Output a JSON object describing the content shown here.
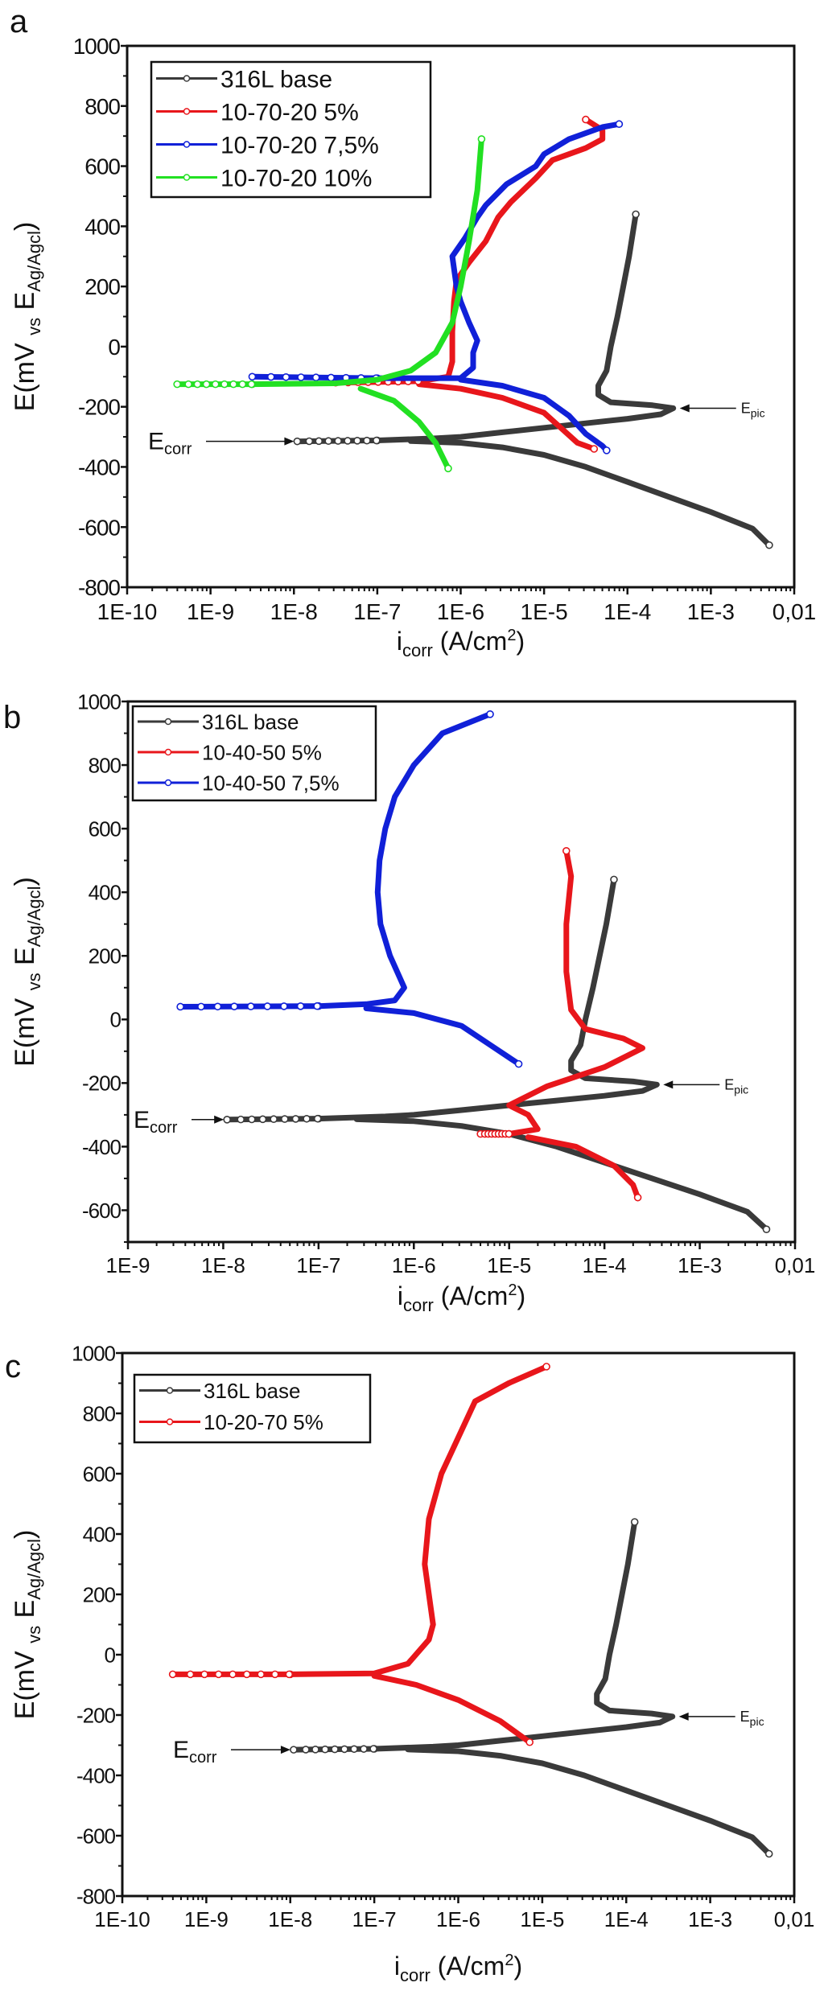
{
  "chart_data": [
    {
      "type": "line",
      "panel_label": "a",
      "xscale": "log",
      "xlabel": {
        "main": "i",
        "sub": "corr",
        "unit": " (A/cm",
        "sup": "2",
        "close": ")"
      },
      "ylabel": {
        "main": "E(mV ",
        "sub1": "vs",
        "mid": " E",
        "sub2": "Ag/Agcl",
        "close": ")"
      },
      "xlim_log10": [
        -10,
        -2
      ],
      "ylim": [
        -800,
        1000
      ],
      "xticks": [
        "1E-10",
        "1E-9",
        "1E-8",
        "1E-7",
        "1E-6",
        "1E-5",
        "1E-4",
        "1E-3",
        "0,01"
      ],
      "yticks": [
        1000,
        800,
        600,
        400,
        200,
        0,
        -200,
        -400,
        -600,
        -800
      ],
      "legend_position": "top-left",
      "annotations": {
        "ecorr": {
          "main": "E",
          "sub": "corr",
          "E": -315,
          "log_i": -7.96
        },
        "epic": {
          "main": "E",
          "sub": "pic",
          "E": -205,
          "log_i": -3.45
        }
      },
      "series": [
        {
          "name": "316L base",
          "color": "#3a3a3a",
          "anodic": [
            [
              -7.96,
              -315
            ],
            [
              -7,
              -312
            ],
            [
              -6.3,
              -305
            ],
            [
              -6,
              -300
            ],
            [
              -5.5,
              -285
            ],
            [
              -5,
              -270
            ],
            [
              -4.5,
              -255
            ],
            [
              -4,
              -240
            ],
            [
              -3.6,
              -225
            ],
            [
              -3.45,
              -205
            ],
            [
              -3.7,
              -195
            ],
            [
              -4.2,
              -185
            ],
            [
              -4.35,
              -160
            ],
            [
              -4.35,
              -130
            ],
            [
              -4.25,
              -80
            ],
            [
              -4.2,
              0
            ],
            [
              -4.12,
              100
            ],
            [
              -4.05,
              200
            ],
            [
              -3.98,
              300
            ],
            [
              -3.9,
              440
            ]
          ],
          "cathodic": [
            [
              -6.6,
              -314
            ],
            [
              -6,
              -320
            ],
            [
              -5.5,
              -335
            ],
            [
              -5,
              -360
            ],
            [
              -4.5,
              -400
            ],
            [
              -4,
              -450
            ],
            [
              -3.5,
              -500
            ],
            [
              -3,
              -550
            ],
            [
              -2.5,
              -605
            ],
            [
              -2.3,
              -660
            ]
          ]
        },
        {
          "name": "10-70-20 5%",
          "color": "#e8161b",
          "anodic": [
            [
              -7.5,
              -120
            ],
            [
              -6.5,
              -115
            ],
            [
              -6.15,
              -100
            ],
            [
              -6.1,
              -50
            ],
            [
              -6.1,
              50
            ],
            [
              -6.08,
              150
            ],
            [
              -6.05,
              220
            ],
            [
              -5.9,
              280
            ],
            [
              -5.7,
              350
            ],
            [
              -5.55,
              430
            ],
            [
              -5.4,
              480
            ],
            [
              -5.1,
              560
            ],
            [
              -4.9,
              620
            ],
            [
              -4.5,
              660
            ],
            [
              -4.3,
              690
            ],
            [
              -4.3,
              720
            ],
            [
              -4.5,
              755
            ]
          ],
          "cathodic": [
            [
              -6.5,
              -125
            ],
            [
              -6,
              -140
            ],
            [
              -5.5,
              -170
            ],
            [
              -5,
              -220
            ],
            [
              -4.8,
              -270
            ],
            [
              -4.6,
              -320
            ],
            [
              -4.4,
              -340
            ]
          ]
        },
        {
          "name": "10-70-20 7,5%",
          "color": "#1020d8",
          "anodic": [
            [
              -8.5,
              -100
            ],
            [
              -7,
              -105
            ],
            [
              -6.5,
              -105
            ],
            [
              -6,
              -105
            ],
            [
              -5.85,
              -70
            ],
            [
              -5.85,
              -20
            ],
            [
              -5.8,
              20
            ],
            [
              -5.9,
              80
            ],
            [
              -6.0,
              150
            ],
            [
              -6.05,
              200
            ],
            [
              -6.1,
              300
            ],
            [
              -5.95,
              360
            ],
            [
              -5.8,
              430
            ],
            [
              -5.7,
              470
            ],
            [
              -5.45,
              540
            ],
            [
              -5.1,
              600
            ],
            [
              -5.0,
              640
            ],
            [
              -4.7,
              690
            ],
            [
              -4.3,
              730
            ],
            [
              -4.1,
              740
            ]
          ],
          "cathodic": [
            [
              -6,
              -110
            ],
            [
              -5.5,
              -130
            ],
            [
              -5,
              -170
            ],
            [
              -4.7,
              -230
            ],
            [
              -4.5,
              -290
            ],
            [
              -4.3,
              -330
            ],
            [
              -4.25,
              -345
            ]
          ]
        },
        {
          "name": "10-70-20 10%",
          "color": "#22e022",
          "anodic": [
            [
              -9.4,
              -125
            ],
            [
              -8.5,
              -125
            ],
            [
              -7.5,
              -122
            ],
            [
              -7,
              -110
            ],
            [
              -6.6,
              -80
            ],
            [
              -6.3,
              -20
            ],
            [
              -6.1,
              80
            ],
            [
              -6.0,
              200
            ],
            [
              -5.9,
              350
            ],
            [
              -5.8,
              520
            ],
            [
              -5.75,
              690
            ]
          ],
          "cathodic": [
            [
              -7.2,
              -140
            ],
            [
              -6.8,
              -180
            ],
            [
              -6.5,
              -250
            ],
            [
              -6.3,
              -320
            ],
            [
              -6.15,
              -405
            ]
          ]
        }
      ]
    },
    {
      "type": "line",
      "panel_label": "b",
      "xscale": "log",
      "xlabel": {
        "main": "i",
        "sub": "corr",
        "unit": " (A/cm",
        "sup": "2",
        "close": ")"
      },
      "ylabel": {
        "main": "E(mV ",
        "sub1": "vs",
        "mid": " E",
        "sub2": "Ag/Agcl",
        "close": ")"
      },
      "xlim_log10": [
        -9,
        -2
      ],
      "ylim": [
        -700,
        1000
      ],
      "xticks": [
        "1E-9",
        "1E-8",
        "1E-7",
        "1E-6",
        "1E-5",
        "1E-4",
        "1E-3",
        "0,01"
      ],
      "yticks": [
        1000,
        800,
        600,
        400,
        200,
        0,
        -200,
        -400,
        -600
      ],
      "legend_position": "top-left",
      "annotations": {
        "ecorr": {
          "main": "E",
          "sub": "corr",
          "E": -315,
          "log_i": -7.96
        },
        "epic": {
          "main": "E",
          "sub": "pic",
          "E": -205,
          "log_i": -3.45
        }
      },
      "series": [
        {
          "name": "316L base",
          "color": "#3a3a3a",
          "anodic": [
            [
              -7.96,
              -315
            ],
            [
              -7,
              -312
            ],
            [
              -6.3,
              -305
            ],
            [
              -6,
              -300
            ],
            [
              -5.5,
              -285
            ],
            [
              -5,
              -270
            ],
            [
              -4.5,
              -255
            ],
            [
              -4,
              -240
            ],
            [
              -3.6,
              -225
            ],
            [
              -3.45,
              -205
            ],
            [
              -3.7,
              -195
            ],
            [
              -4.2,
              -185
            ],
            [
              -4.35,
              -160
            ],
            [
              -4.35,
              -130
            ],
            [
              -4.25,
              -80
            ],
            [
              -4.2,
              0
            ],
            [
              -4.12,
              100
            ],
            [
              -4.05,
              200
            ],
            [
              -3.98,
              300
            ],
            [
              -3.9,
              440
            ]
          ],
          "cathodic": [
            [
              -6.6,
              -314
            ],
            [
              -6,
              -320
            ],
            [
              -5.5,
              -335
            ],
            [
              -5,
              -360
            ],
            [
              -4.5,
              -400
            ],
            [
              -4,
              -450
            ],
            [
              -3.5,
              -500
            ],
            [
              -3,
              -550
            ],
            [
              -2.5,
              -605
            ],
            [
              -2.3,
              -660
            ]
          ]
        },
        {
          "name": "10-40-50 5%",
          "color": "#e8161b",
          "anodic": [
            [
              -5.3,
              -360
            ],
            [
              -5,
              -360
            ],
            [
              -4.7,
              -345
            ],
            [
              -4.8,
              -300
            ],
            [
              -5,
              -270
            ],
            [
              -4.6,
              -210
            ],
            [
              -4,
              -150
            ],
            [
              -3.6,
              -90
            ],
            [
              -3.8,
              -60
            ],
            [
              -4.2,
              -30
            ],
            [
              -4.35,
              30
            ],
            [
              -4.4,
              150
            ],
            [
              -4.4,
              300
            ],
            [
              -4.35,
              450
            ],
            [
              -4.4,
              530
            ]
          ],
          "cathodic": [
            [
              -4.8,
              -370
            ],
            [
              -4.3,
              -400
            ],
            [
              -3.9,
              -460
            ],
            [
              -3.7,
              -520
            ],
            [
              -3.65,
              -560
            ]
          ]
        },
        {
          "name": "10-40-50 7,5%",
          "color": "#1020d8",
          "anodic": [
            [
              -8.45,
              40
            ],
            [
              -7,
              42
            ],
            [
              -6.5,
              48
            ],
            [
              -6.2,
              60
            ],
            [
              -6.1,
              100
            ],
            [
              -6.25,
              200
            ],
            [
              -6.35,
              300
            ],
            [
              -6.38,
              400
            ],
            [
              -6.36,
              500
            ],
            [
              -6.3,
              600
            ],
            [
              -6.2,
              700
            ],
            [
              -6,
              800
            ],
            [
              -5.7,
              900
            ],
            [
              -5.2,
              960
            ]
          ],
          "cathodic": [
            [
              -6.5,
              35
            ],
            [
              -6,
              20
            ],
            [
              -5.5,
              -20
            ],
            [
              -5.2,
              -80
            ],
            [
              -4.9,
              -140
            ]
          ]
        }
      ]
    },
    {
      "type": "line",
      "panel_label": "c",
      "xscale": "log",
      "xlabel": {
        "main": "i",
        "sub": "corr",
        "unit": " (A/cm",
        "sup": "2",
        "close": ")"
      },
      "ylabel": {
        "main": "E(mV ",
        "sub1": "vs",
        "mid": " E",
        "sub2": "Ag/Agcl",
        "close": ")"
      },
      "xlim_log10": [
        -10,
        -2
      ],
      "ylim": [
        -800,
        1000
      ],
      "xticks": [
        "1E-10",
        "1E-9",
        "1E-8",
        "1E-7",
        "1E-6",
        "1E-5",
        "1E-4",
        "1E-3",
        "0,01"
      ],
      "yticks": [
        1000,
        800,
        600,
        400,
        200,
        0,
        -200,
        -400,
        -600,
        -800
      ],
      "legend_position": "top-left",
      "annotations": {
        "ecorr": {
          "main": "E",
          "sub": "corr",
          "E": -315,
          "log_i": -7.96
        },
        "epic": {
          "main": "E",
          "sub": "pic",
          "E": -205,
          "log_i": -3.45
        }
      },
      "series": [
        {
          "name": "316L base",
          "color": "#3a3a3a",
          "anodic": [
            [
              -7.96,
              -315
            ],
            [
              -7,
              -312
            ],
            [
              -6.3,
              -305
            ],
            [
              -6,
              -300
            ],
            [
              -5.5,
              -285
            ],
            [
              -5,
              -270
            ],
            [
              -4.5,
              -255
            ],
            [
              -4,
              -240
            ],
            [
              -3.6,
              -225
            ],
            [
              -3.45,
              -205
            ],
            [
              -3.7,
              -195
            ],
            [
              -4.2,
              -185
            ],
            [
              -4.35,
              -160
            ],
            [
              -4.35,
              -130
            ],
            [
              -4.25,
              -80
            ],
            [
              -4.2,
              0
            ],
            [
              -4.12,
              100
            ],
            [
              -4.05,
              200
            ],
            [
              -3.98,
              300
            ],
            [
              -3.9,
              440
            ]
          ],
          "cathodic": [
            [
              -6.6,
              -314
            ],
            [
              -6,
              -320
            ],
            [
              -5.5,
              -335
            ],
            [
              -5,
              -360
            ],
            [
              -4.5,
              -400
            ],
            [
              -4,
              -450
            ],
            [
              -3.5,
              -500
            ],
            [
              -3,
              -550
            ],
            [
              -2.5,
              -605
            ],
            [
              -2.3,
              -660
            ]
          ]
        },
        {
          "name": "10-20-70 5%",
          "color": "#e8161b",
          "anodic": [
            [
              -9.4,
              -65
            ],
            [
              -8,
              -65
            ],
            [
              -7,
              -62
            ],
            [
              -6.6,
              -30
            ],
            [
              -6.35,
              50
            ],
            [
              -6.3,
              100
            ],
            [
              -6.4,
              300
            ],
            [
              -6.35,
              450
            ],
            [
              -6.2,
              600
            ],
            [
              -6.0,
              720
            ],
            [
              -5.8,
              840
            ],
            [
              -5.4,
              900
            ],
            [
              -4.95,
              955
            ]
          ],
          "cathodic": [
            [
              -7,
              -70
            ],
            [
              -6.5,
              -100
            ],
            [
              -6,
              -150
            ],
            [
              -5.5,
              -220
            ],
            [
              -5.15,
              -290
            ]
          ]
        }
      ]
    }
  ]
}
